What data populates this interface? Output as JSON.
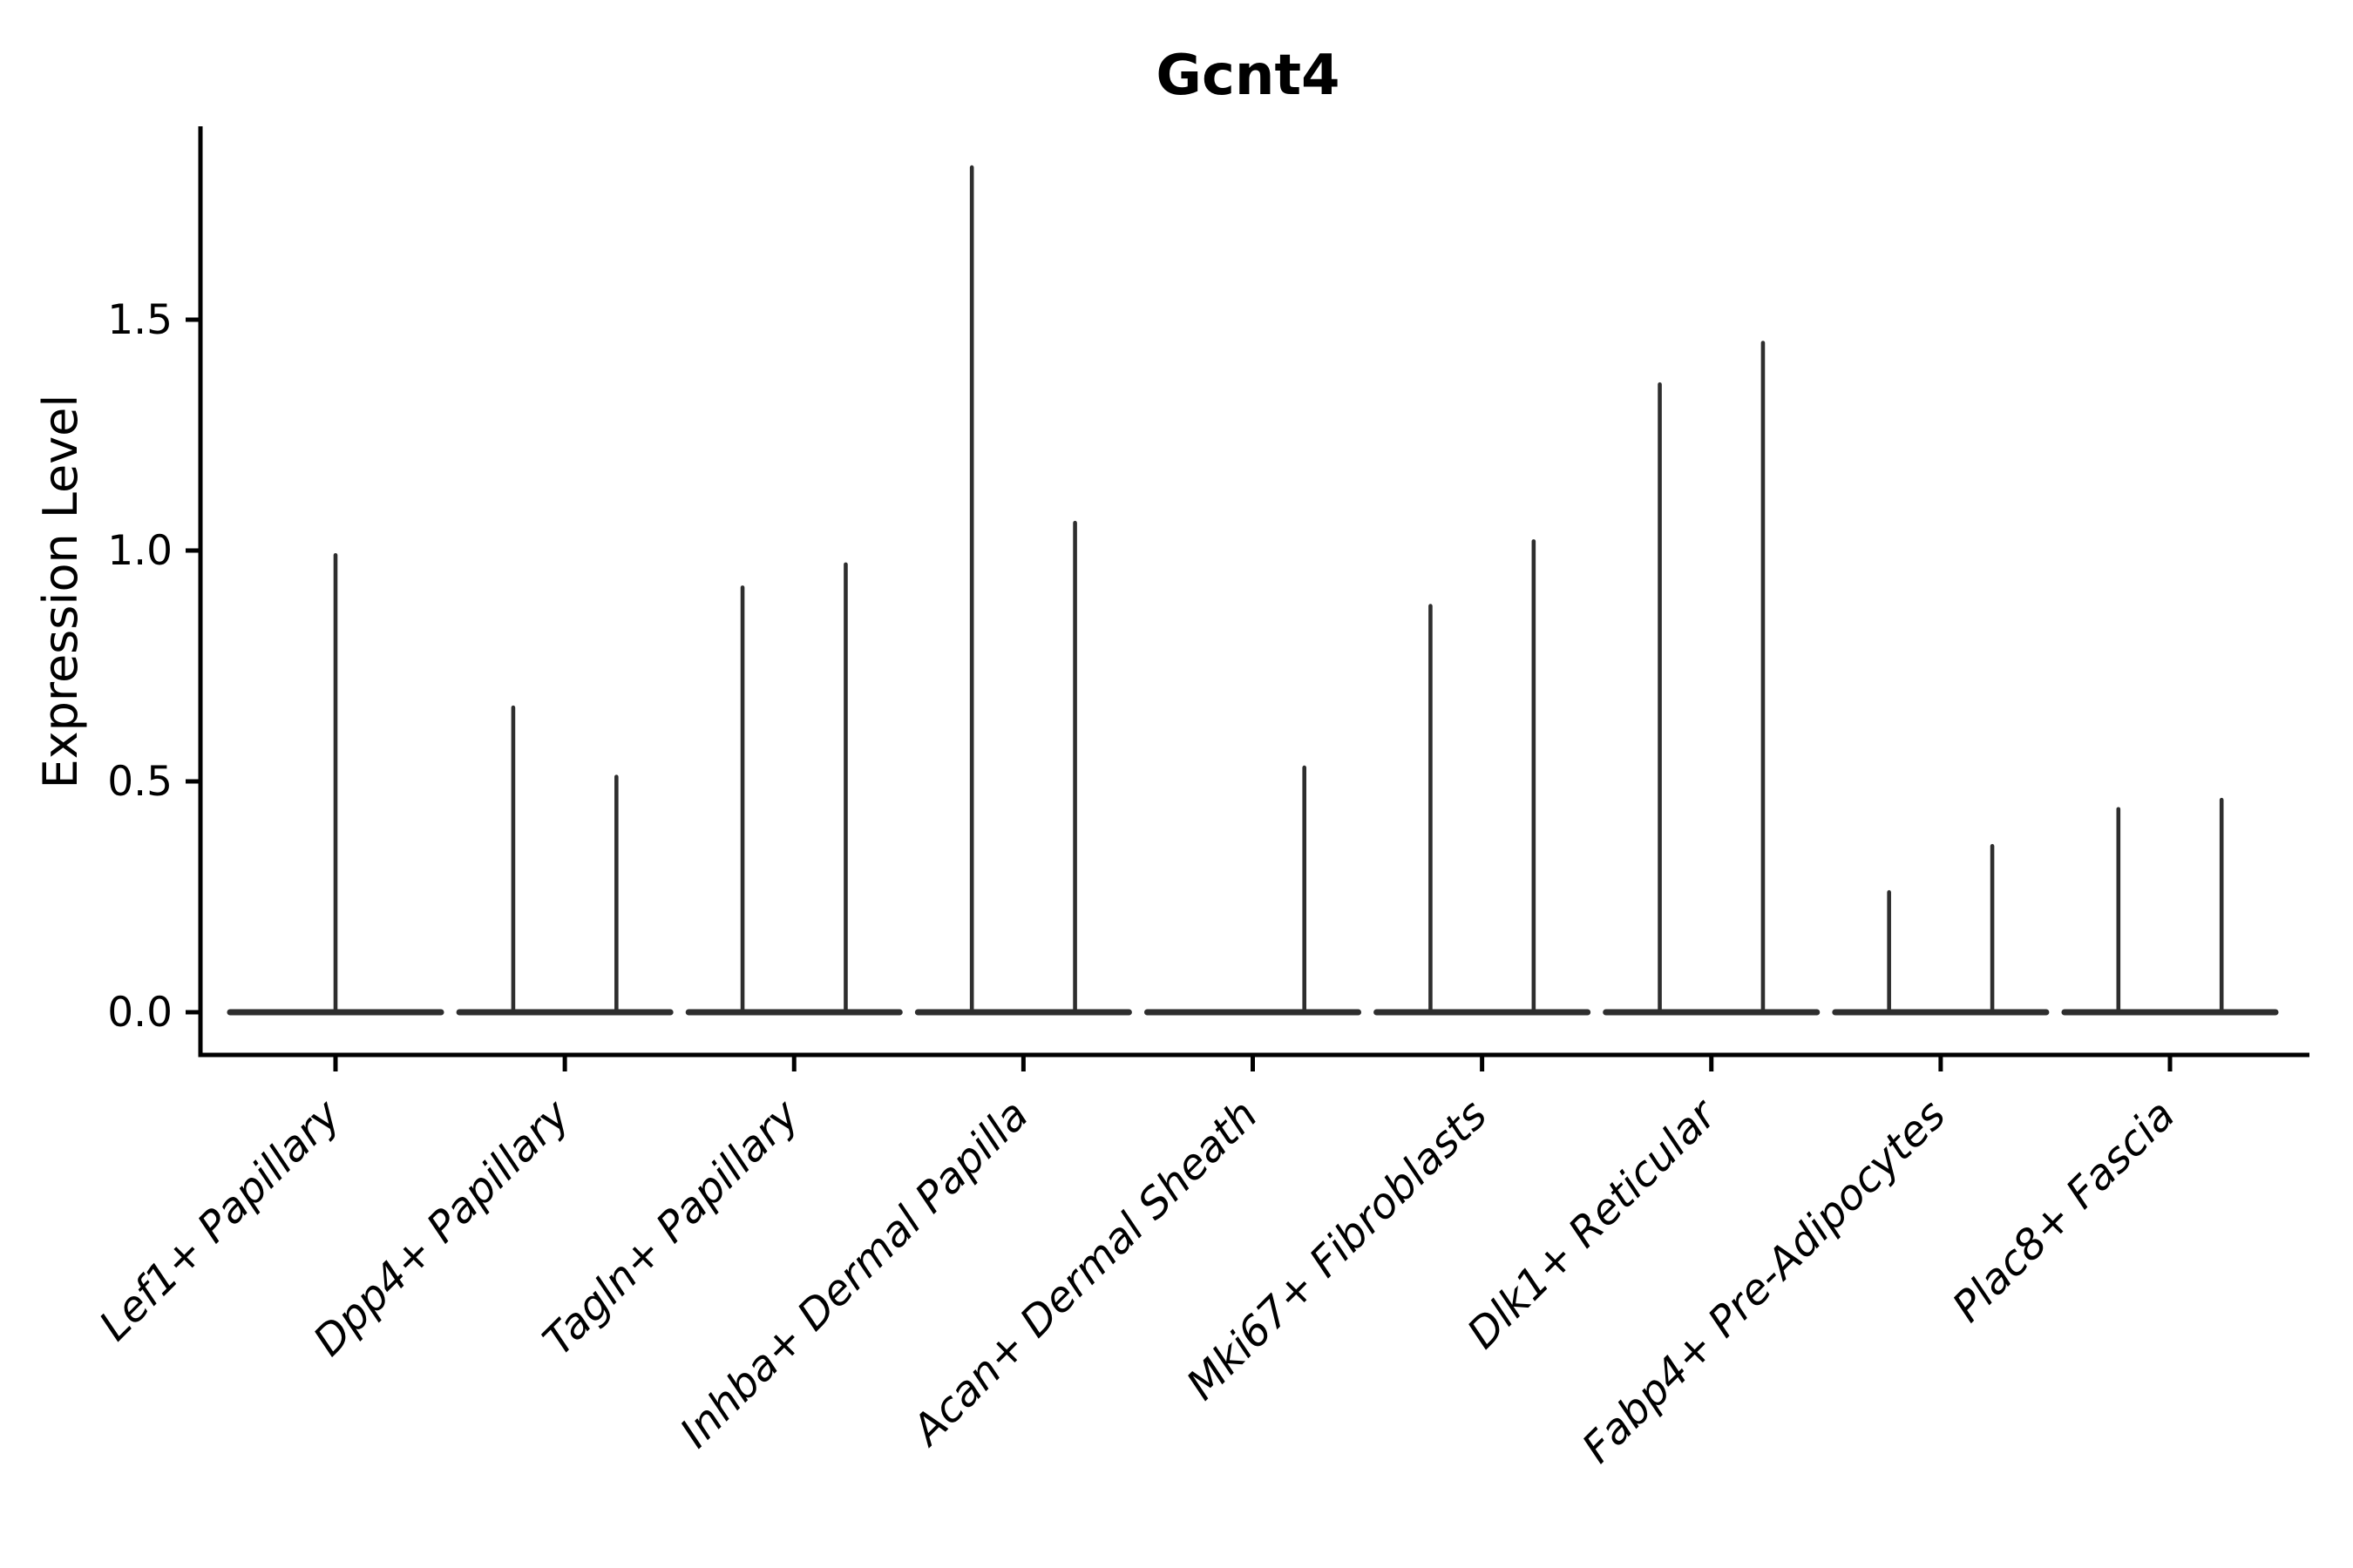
{
  "chart_data": {
    "type": "violin",
    "title": "Gcnt4",
    "ylabel": "Expression Level",
    "xlabel": "",
    "grid": false,
    "legend": "none",
    "ylim": [
      -0.09,
      1.92
    ],
    "yticks": [
      0.0,
      0.5,
      1.0,
      1.5
    ],
    "ytick_labels": [
      "0.0",
      "0.5",
      "1.0",
      "1.5"
    ],
    "categories": [
      "Lef1+ Papillary",
      "Dpp4+ Papillary",
      "Tagln+ Papillary",
      "Inhba+ Dermal Papilla",
      "Acan+ Dermal Sheath",
      "Mki67+ Fibroblasts",
      "Dlk1+ Reticular",
      "Fabp4+ Pre-Adipocytes",
      "Plac8+ Fascia"
    ],
    "violins": [
      {
        "category": "Lef1+ Papillary",
        "density_spikes": [
          {
            "offset": 0.0,
            "value": 0.99
          }
        ]
      },
      {
        "category": "Dpp4+ Papillary",
        "density_spikes": [
          {
            "offset": -0.225,
            "value": 0.66
          },
          {
            "offset": 0.225,
            "value": 0.51
          }
        ]
      },
      {
        "category": "Tagln+ Papillary",
        "density_spikes": [
          {
            "offset": -0.225,
            "value": 0.92
          },
          {
            "offset": 0.225,
            "value": 0.97
          }
        ]
      },
      {
        "category": "Inhba+ Dermal Papilla",
        "density_spikes": [
          {
            "offset": -0.225,
            "value": 1.83
          },
          {
            "offset": 0.225,
            "value": 1.06
          }
        ]
      },
      {
        "category": "Acan+ Dermal Sheath",
        "density_spikes": [
          {
            "offset": 0.225,
            "value": 0.53
          }
        ]
      },
      {
        "category": "Mki67+ Fibroblasts",
        "density_spikes": [
          {
            "offset": -0.225,
            "value": 0.88
          },
          {
            "offset": 0.225,
            "value": 1.02
          }
        ]
      },
      {
        "category": "Dlk1+ Reticular",
        "density_spikes": [
          {
            "offset": -0.225,
            "value": 1.36
          },
          {
            "offset": 0.225,
            "value": 1.45
          }
        ]
      },
      {
        "category": "Fabp4+ Pre-Adipocytes",
        "density_spikes": [
          {
            "offset": -0.225,
            "value": 0.26
          },
          {
            "offset": 0.225,
            "value": 0.36
          }
        ]
      },
      {
        "category": "Plac8+ Fascia",
        "density_spikes": [
          {
            "offset": -0.225,
            "value": 0.44
          },
          {
            "offset": 0.225,
            "value": 0.46
          }
        ]
      }
    ],
    "baseline_value": 0.0,
    "violin_half_width": 0.46,
    "colors": {
      "violin_line": "#2e2e2e",
      "axis": "#000000",
      "text": "#000000",
      "background": "#ffffff"
    }
  }
}
